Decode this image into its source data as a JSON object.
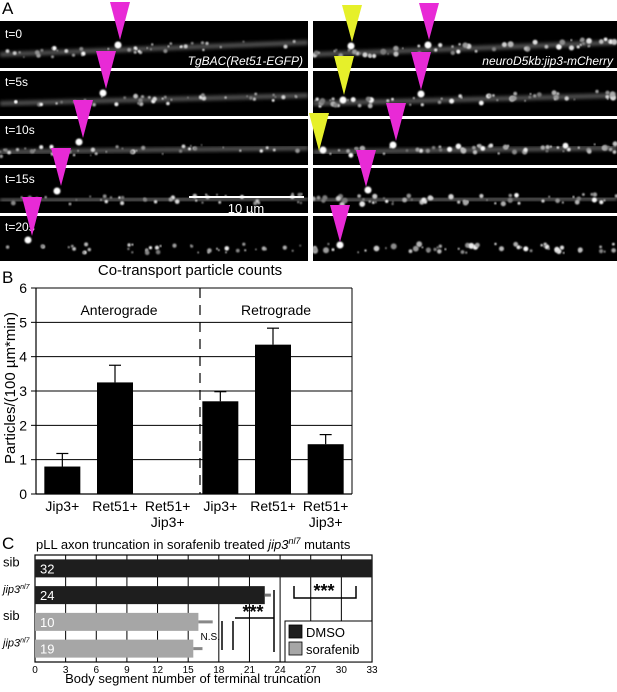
{
  "panel_a": {
    "letter": "A",
    "left_label": "TgBAC(Ret51-EGFP)",
    "right_label": "neuroD5kb:jip3-mCherry",
    "time_labels": [
      "t=0",
      "t=5s",
      "t=10s",
      "t=15s",
      "t=20s"
    ],
    "scale_label": "10 µm",
    "colors": {
      "magenta": "#e82ad6",
      "yellow": "#e6f02a"
    }
  },
  "panel_b": {
    "letter": "B",
    "section_labels": {
      "antero": "Anterograde",
      "retro": "Retrograde"
    },
    "chart_data": {
      "type": "bar",
      "title": "Co-transport particle counts",
      "ylabel": "Particles/(100 µm*min)",
      "ylim": [
        0,
        6
      ],
      "yticks": [
        "0",
        "1",
        "2",
        "3",
        "4",
        "5",
        "6"
      ],
      "grid": true,
      "categories": [
        {
          "line1": "Jip3+",
          "line2": ""
        },
        {
          "line1": "Ret51+",
          "line2": ""
        },
        {
          "line1": "Ret51+",
          "line2": "Jip3+"
        },
        {
          "line1": "Jip3+",
          "line2": ""
        },
        {
          "line1": "Ret51+",
          "line2": ""
        },
        {
          "line1": "Ret51+",
          "line2": "Jip3+"
        }
      ],
      "values": [
        0.8,
        3.25,
        0,
        2.7,
        4.35,
        1.45
      ],
      "errors": [
        0.38,
        0.5,
        0,
        0.28,
        0.48,
        0.28
      ]
    }
  },
  "panel_c": {
    "letter": "C",
    "chart_data": {
      "type": "bar",
      "orientation": "horizontal",
      "title_prefix": "pLL axon truncation in sorafenib treated ",
      "title_gene": "jip3",
      "title_sup": "nl7",
      "title_suffix": " mutants",
      "xlabel": "Body segment number of terminal truncation",
      "xlim": [
        0,
        33
      ],
      "xticks": [
        "0",
        "3",
        "6",
        "9",
        "12",
        "15",
        "18",
        "21",
        "24",
        "27",
        "30",
        "33"
      ],
      "rows": [
        {
          "label": "sib",
          "label_sup": "",
          "n": "32",
          "value": 33,
          "error": 0,
          "group": "DMSO"
        },
        {
          "label": "jip3",
          "label_sup": "nl7",
          "n": "24",
          "value": 22.5,
          "error": 0.6,
          "group": "DMSO"
        },
        {
          "label": "sib",
          "label_sup": "",
          "n": "10",
          "value": 16,
          "error": 1.4,
          "group": "sorafenib"
        },
        {
          "label": "jip3",
          "label_sup": "nl7",
          "n": "19",
          "value": 15.5,
          "error": 0.9,
          "group": "sorafenib"
        }
      ],
      "significance": [
        {
          "text": "***"
        },
        {
          "text": "***"
        },
        {
          "text": "N.S."
        }
      ],
      "legend": [
        "DMSO",
        "sorafenib"
      ],
      "colors": {
        "DMSO": "#1e1e1e",
        "sorafenib": "#a6a6a6"
      }
    }
  }
}
